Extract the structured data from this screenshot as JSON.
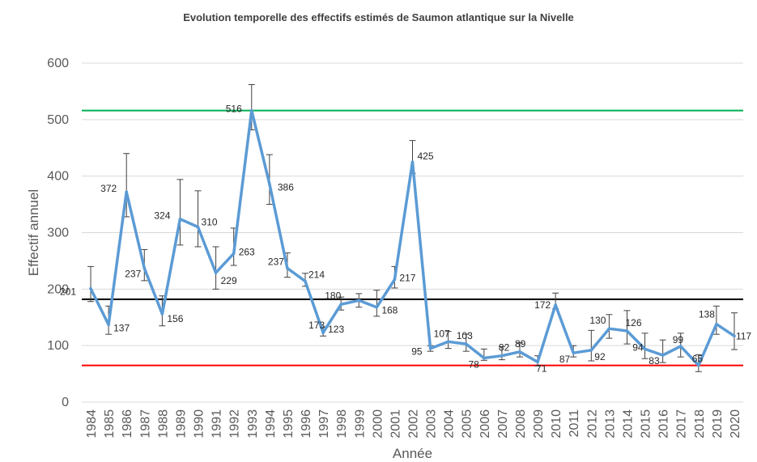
{
  "chart_data": {
    "type": "line",
    "title": "Evolution temporelle des effectifs estimés de Saumon atlantique sur la Nivelle",
    "xlabel": "Année",
    "ylabel": "Effectif annuel",
    "ylim": [
      0,
      600
    ],
    "yticks": [
      0,
      100,
      200,
      300,
      400,
      500,
      600
    ],
    "grid": true,
    "legend": "none",
    "categories": [
      "1984",
      "1985",
      "1986",
      "1987",
      "1988",
      "1989",
      "1990",
      "1991",
      "1992",
      "1993",
      "1994",
      "1995",
      "1996",
      "1997",
      "1998",
      "1999",
      "2000",
      "2001",
      "2002",
      "2003",
      "2004",
      "2005",
      "2006",
      "2007",
      "2008",
      "2009",
      "2010",
      "2011",
      "2012",
      "2013",
      "2014",
      "2015",
      "2016",
      "2017",
      "2018",
      "2019",
      "2020"
    ],
    "series": [
      {
        "values": [
          201,
          137,
          372,
          237,
          156,
          324,
          310,
          229,
          263,
          516,
          386,
          237,
          214,
          123,
          173,
          180,
          168,
          217,
          425,
          95,
          107,
          103,
          78,
          82,
          89,
          71,
          172,
          87,
          92,
          130,
          126,
          94,
          83,
          99,
          65,
          138,
          117
        ],
        "error_low": [
          178,
          120,
          328,
          215,
          135,
          278,
          275,
          200,
          242,
          482,
          350,
          221,
          205,
          117,
          163,
          168,
          152,
          202,
          405,
          90,
          95,
          90,
          74,
          75,
          80,
          64,
          165,
          80,
          73,
          113,
          103,
          77,
          70,
          80,
          54,
          120,
          93
        ],
        "error_high": [
          240,
          170,
          440,
          270,
          188,
          394,
          374,
          275,
          308,
          562,
          438,
          264,
          228,
          133,
          186,
          192,
          198,
          240,
          463,
          100,
          125,
          120,
          94,
          98,
          105,
          82,
          193,
          100,
          127,
          155,
          162,
          122,
          110,
          122,
          84,
          170,
          158
        ],
        "color": "#5b9bd5"
      }
    ],
    "reference_lines": [
      {
        "value": 516,
        "color": "#00b050"
      },
      {
        "value": 182,
        "color": "#000000"
      },
      {
        "value": 65,
        "color": "#ff0000"
      }
    ]
  }
}
